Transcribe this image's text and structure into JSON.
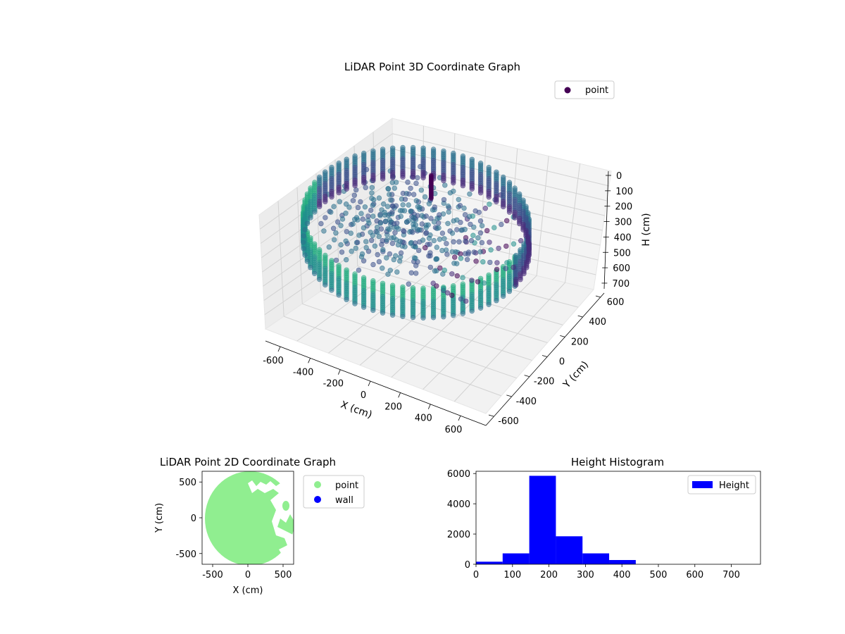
{
  "chart_data": [
    {
      "type": "scatter",
      "projection": "3d",
      "title": "LiDAR Point 3D Coordinate Graph",
      "xlabel": "X (cm)",
      "ylabel": "Y (cm)",
      "zlabel": "H (cm)",
      "xlim": [
        -700,
        700
      ],
      "ylim": [
        -700,
        700
      ],
      "zlim": [
        760,
        0
      ],
      "z_axis_inverted": true,
      "x_ticks": [
        "-600",
        "-400",
        "-200",
        "0",
        "200",
        "400",
        "600"
      ],
      "y_ticks": [
        "-600",
        "-400",
        "-200",
        "0",
        "200",
        "400",
        "600"
      ],
      "z_ticks": [
        "0",
        "100",
        "200",
        "300",
        "400",
        "500",
        "600",
        "700"
      ],
      "legend": [
        "point"
      ],
      "legend_position": "top-right",
      "colormap": "viridis",
      "grid": true,
      "structure": {
        "outer_wall_radius": 650,
        "wall_height_range": [
          130,
          330
        ],
        "inner_cluster_height_range": [
          100,
          350
        ],
        "gap_sector": "positive X / positive Y",
        "scattered_points_in_gap": true
      }
    },
    {
      "type": "scatter",
      "title": "LiDAR Point 2D Coordinate Graph",
      "xlabel": "X (cm)",
      "ylabel": "Y (cm)",
      "xlim": [
        -650,
        650
      ],
      "ylim": [
        -650,
        650
      ],
      "x_ticks": [
        "-500",
        "0",
        "500"
      ],
      "y_ticks": [
        "500",
        "0",
        "-500"
      ],
      "legend": [
        "point",
        "wall"
      ],
      "legend_position": "outside-right",
      "series": [
        {
          "name": "point",
          "color": "#90ee90",
          "shape": "filled disk radius ~650 with gaps on positive-X side"
        },
        {
          "name": "wall",
          "color": "#0000ff"
        }
      ]
    },
    {
      "type": "bar",
      "histogram": true,
      "title": "Height Histogram",
      "bin_edges": [
        0,
        73,
        146,
        219,
        292,
        365,
        438,
        511,
        584,
        657,
        730
      ],
      "values": [
        170,
        720,
        5850,
        1850,
        720,
        280,
        0,
        0,
        0,
        0
      ],
      "xlim": [
        0,
        780
      ],
      "ylim": [
        0,
        6150
      ],
      "x_ticks": [
        "0",
        "100",
        "200",
        "300",
        "400",
        "500",
        "600",
        "700"
      ],
      "y_ticks": [
        "0",
        "2000",
        "4000",
        "6000"
      ],
      "legend": [
        "Height"
      ],
      "legend_position": "top-right",
      "color": "#0000ff"
    }
  ]
}
